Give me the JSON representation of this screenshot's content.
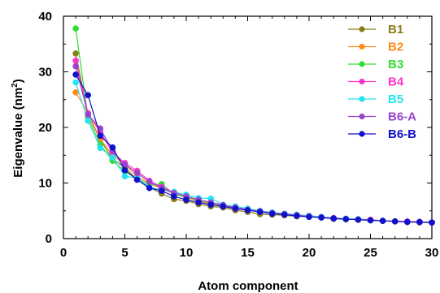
{
  "chart_data": {
    "type": "line",
    "title": "",
    "xlabel": "Atom component",
    "ylabel": "Eigenvalue (nm",
    "ylabel_sup": "2",
    "ylabel_close": ")",
    "xlim": [
      0,
      30
    ],
    "ylim": [
      0,
      40
    ],
    "x_ticks": [
      0,
      5,
      10,
      15,
      20,
      25,
      30
    ],
    "y_ticks": [
      0,
      10,
      20,
      30,
      40
    ],
    "grid": false,
    "legend_position": "top-right",
    "x": [
      1,
      2,
      3,
      4,
      5,
      6,
      7,
      8,
      9,
      10,
      11,
      12,
      13,
      14,
      15,
      16,
      17,
      18,
      19,
      20,
      21,
      22,
      23,
      24,
      25,
      26,
      27,
      28,
      29,
      30
    ],
    "series": [
      {
        "name": "B1",
        "color": "#8c7d1c",
        "values": [
          33.3,
          22.3,
          17.8,
          14.3,
          12.8,
          10.6,
          9.2,
          8.1,
          7.1,
          6.8,
          6.2,
          5.8,
          5.6,
          5.1,
          4.8,
          4.4,
          4.3,
          4.2,
          4.0,
          4.0,
          3.8,
          3.6,
          3.5,
          3.4,
          3.3,
          3.2,
          3.1,
          3.0,
          2.9,
          2.9
        ]
      },
      {
        "name": "B2",
        "color": "#ff8c1a",
        "values": [
          26.3,
          22.6,
          17.9,
          15.0,
          13.4,
          11.2,
          9.9,
          9.0,
          8.1,
          7.4,
          6.7,
          6.2,
          5.8,
          5.4,
          5.2,
          4.8,
          4.6,
          4.4,
          4.2,
          4.0,
          3.8,
          3.6,
          3.5,
          3.4,
          3.3,
          3.2,
          3.1,
          3.0,
          3.0,
          2.9
        ]
      },
      {
        "name": "B3",
        "color": "#33dd33",
        "values": [
          37.8,
          21.8,
          16.9,
          14.0,
          12.1,
          10.8,
          9.7,
          9.8,
          8.0,
          7.5,
          6.9,
          6.4,
          6.0,
          5.6,
          5.2,
          4.9,
          4.6,
          4.4,
          4.2,
          4.0,
          3.8,
          3.6,
          3.5,
          3.4,
          3.3,
          3.2,
          3.1,
          3.0,
          3.0,
          2.9
        ]
      },
      {
        "name": "B4",
        "color": "#ff33cc",
        "values": [
          32.0,
          22.5,
          19.2,
          15.5,
          13.6,
          12.2,
          10.4,
          9.3,
          8.3,
          7.6,
          7.0,
          6.5,
          6.1,
          5.6,
          5.3,
          5.0,
          4.7,
          4.5,
          4.3,
          4.1,
          3.9,
          3.7,
          3.6,
          3.5,
          3.4,
          3.2,
          3.1,
          3.1,
          3.0,
          2.9
        ]
      },
      {
        "name": "B5",
        "color": "#22e5f2",
        "values": [
          28.1,
          21.2,
          16.3,
          14.6,
          11.2,
          10.9,
          9.2,
          8.8,
          8.4,
          7.9,
          7.3,
          7.2,
          6.1,
          5.8,
          5.4,
          5.0,
          4.7,
          4.5,
          4.3,
          4.1,
          3.9,
          3.7,
          3.6,
          3.5,
          3.3,
          3.2,
          3.1,
          3.0,
          3.0,
          2.9
        ]
      },
      {
        "name": "B6-A",
        "color": "#9944cc",
        "values": [
          31.0,
          22.3,
          19.8,
          15.8,
          13.3,
          11.8,
          10.2,
          9.1,
          8.2,
          7.6,
          7.0,
          6.5,
          6.0,
          5.6,
          5.2,
          4.9,
          4.6,
          4.4,
          4.2,
          4.0,
          3.8,
          3.7,
          3.5,
          3.4,
          3.3,
          3.2,
          3.1,
          3.0,
          3.0,
          2.9
        ]
      },
      {
        "name": "B6-B",
        "color": "#1111cc",
        "values": [
          29.5,
          25.8,
          18.5,
          16.4,
          12.3,
          10.6,
          9.1,
          8.6,
          7.6,
          7.0,
          6.5,
          6.1,
          5.8,
          5.4,
          5.1,
          4.8,
          4.5,
          4.3,
          4.1,
          3.9,
          3.8,
          3.6,
          3.5,
          3.4,
          3.3,
          3.2,
          3.1,
          3.0,
          3.0,
          2.9
        ]
      }
    ]
  }
}
